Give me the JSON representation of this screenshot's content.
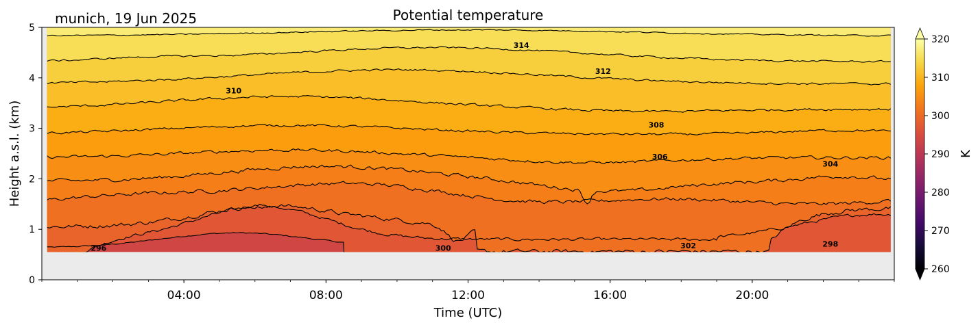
{
  "chart_data": {
    "type": "contourf",
    "title": "Potential temperature",
    "subtitle": "munich, 19 Jun 2025",
    "xlabel": "Time (UTC)",
    "ylabel": "Height a.s.l. (km)",
    "xlim_hours": [
      0,
      24
    ],
    "ylim_km": [
      0,
      5
    ],
    "x_ticks": [
      {
        "hour": 4,
        "label": "04:00"
      },
      {
        "hour": 8,
        "label": "08:00"
      },
      {
        "hour": 12,
        "label": "12:00"
      },
      {
        "hour": 16,
        "label": "16:00"
      },
      {
        "hour": 20,
        "label": "20:00"
      }
    ],
    "y_ticks": [
      {
        "value": 0,
        "label": "0"
      },
      {
        "value": 1,
        "label": "1"
      },
      {
        "value": 2,
        "label": "2"
      },
      {
        "value": 3,
        "label": "3"
      },
      {
        "value": 4,
        "label": "4"
      },
      {
        "value": 5,
        "label": "5"
      }
    ],
    "data_bottom_km": 0.55,
    "data_time_range_hours": [
      0.15,
      23.9
    ],
    "contour_levels_K": [
      296,
      298,
      300,
      302,
      304,
      306,
      308,
      310,
      312,
      314
    ],
    "contour_labels": [
      {
        "text": "296",
        "hour": 1.6,
        "km": 0.63
      },
      {
        "text": "300",
        "hour": 11.3,
        "km": 0.63
      },
      {
        "text": "302",
        "hour": 18.2,
        "km": 0.68
      },
      {
        "text": "298",
        "hour": 22.2,
        "km": 0.71
      },
      {
        "text": "304",
        "hour": 22.2,
        "km": 2.3
      },
      {
        "text": "306",
        "hour": 17.4,
        "km": 2.44
      },
      {
        "text": "308",
        "hour": 17.3,
        "km": 3.07
      },
      {
        "text": "310",
        "hour": 5.4,
        "km": 3.75
      },
      {
        "text": "312",
        "hour": 15.8,
        "km": 4.13
      },
      {
        "text": "314",
        "hour": 13.5,
        "km": 4.65
      }
    ],
    "colorbar": {
      "label": "K",
      "min": 260,
      "max": 320,
      "ticks": [
        {
          "value": 260,
          "label": "260"
        },
        {
          "value": 270,
          "label": "270"
        },
        {
          "value": 280,
          "label": "280"
        },
        {
          "value": 290,
          "label": "290"
        },
        {
          "value": 300,
          "label": "300"
        },
        {
          "value": 310,
          "label": "310"
        },
        {
          "value": 320,
          "label": "320"
        }
      ],
      "extend": "both",
      "colormap": "inferno"
    },
    "colors": {
      "missing_data": "#ebebeb",
      "contour_line": "#000000"
    }
  }
}
